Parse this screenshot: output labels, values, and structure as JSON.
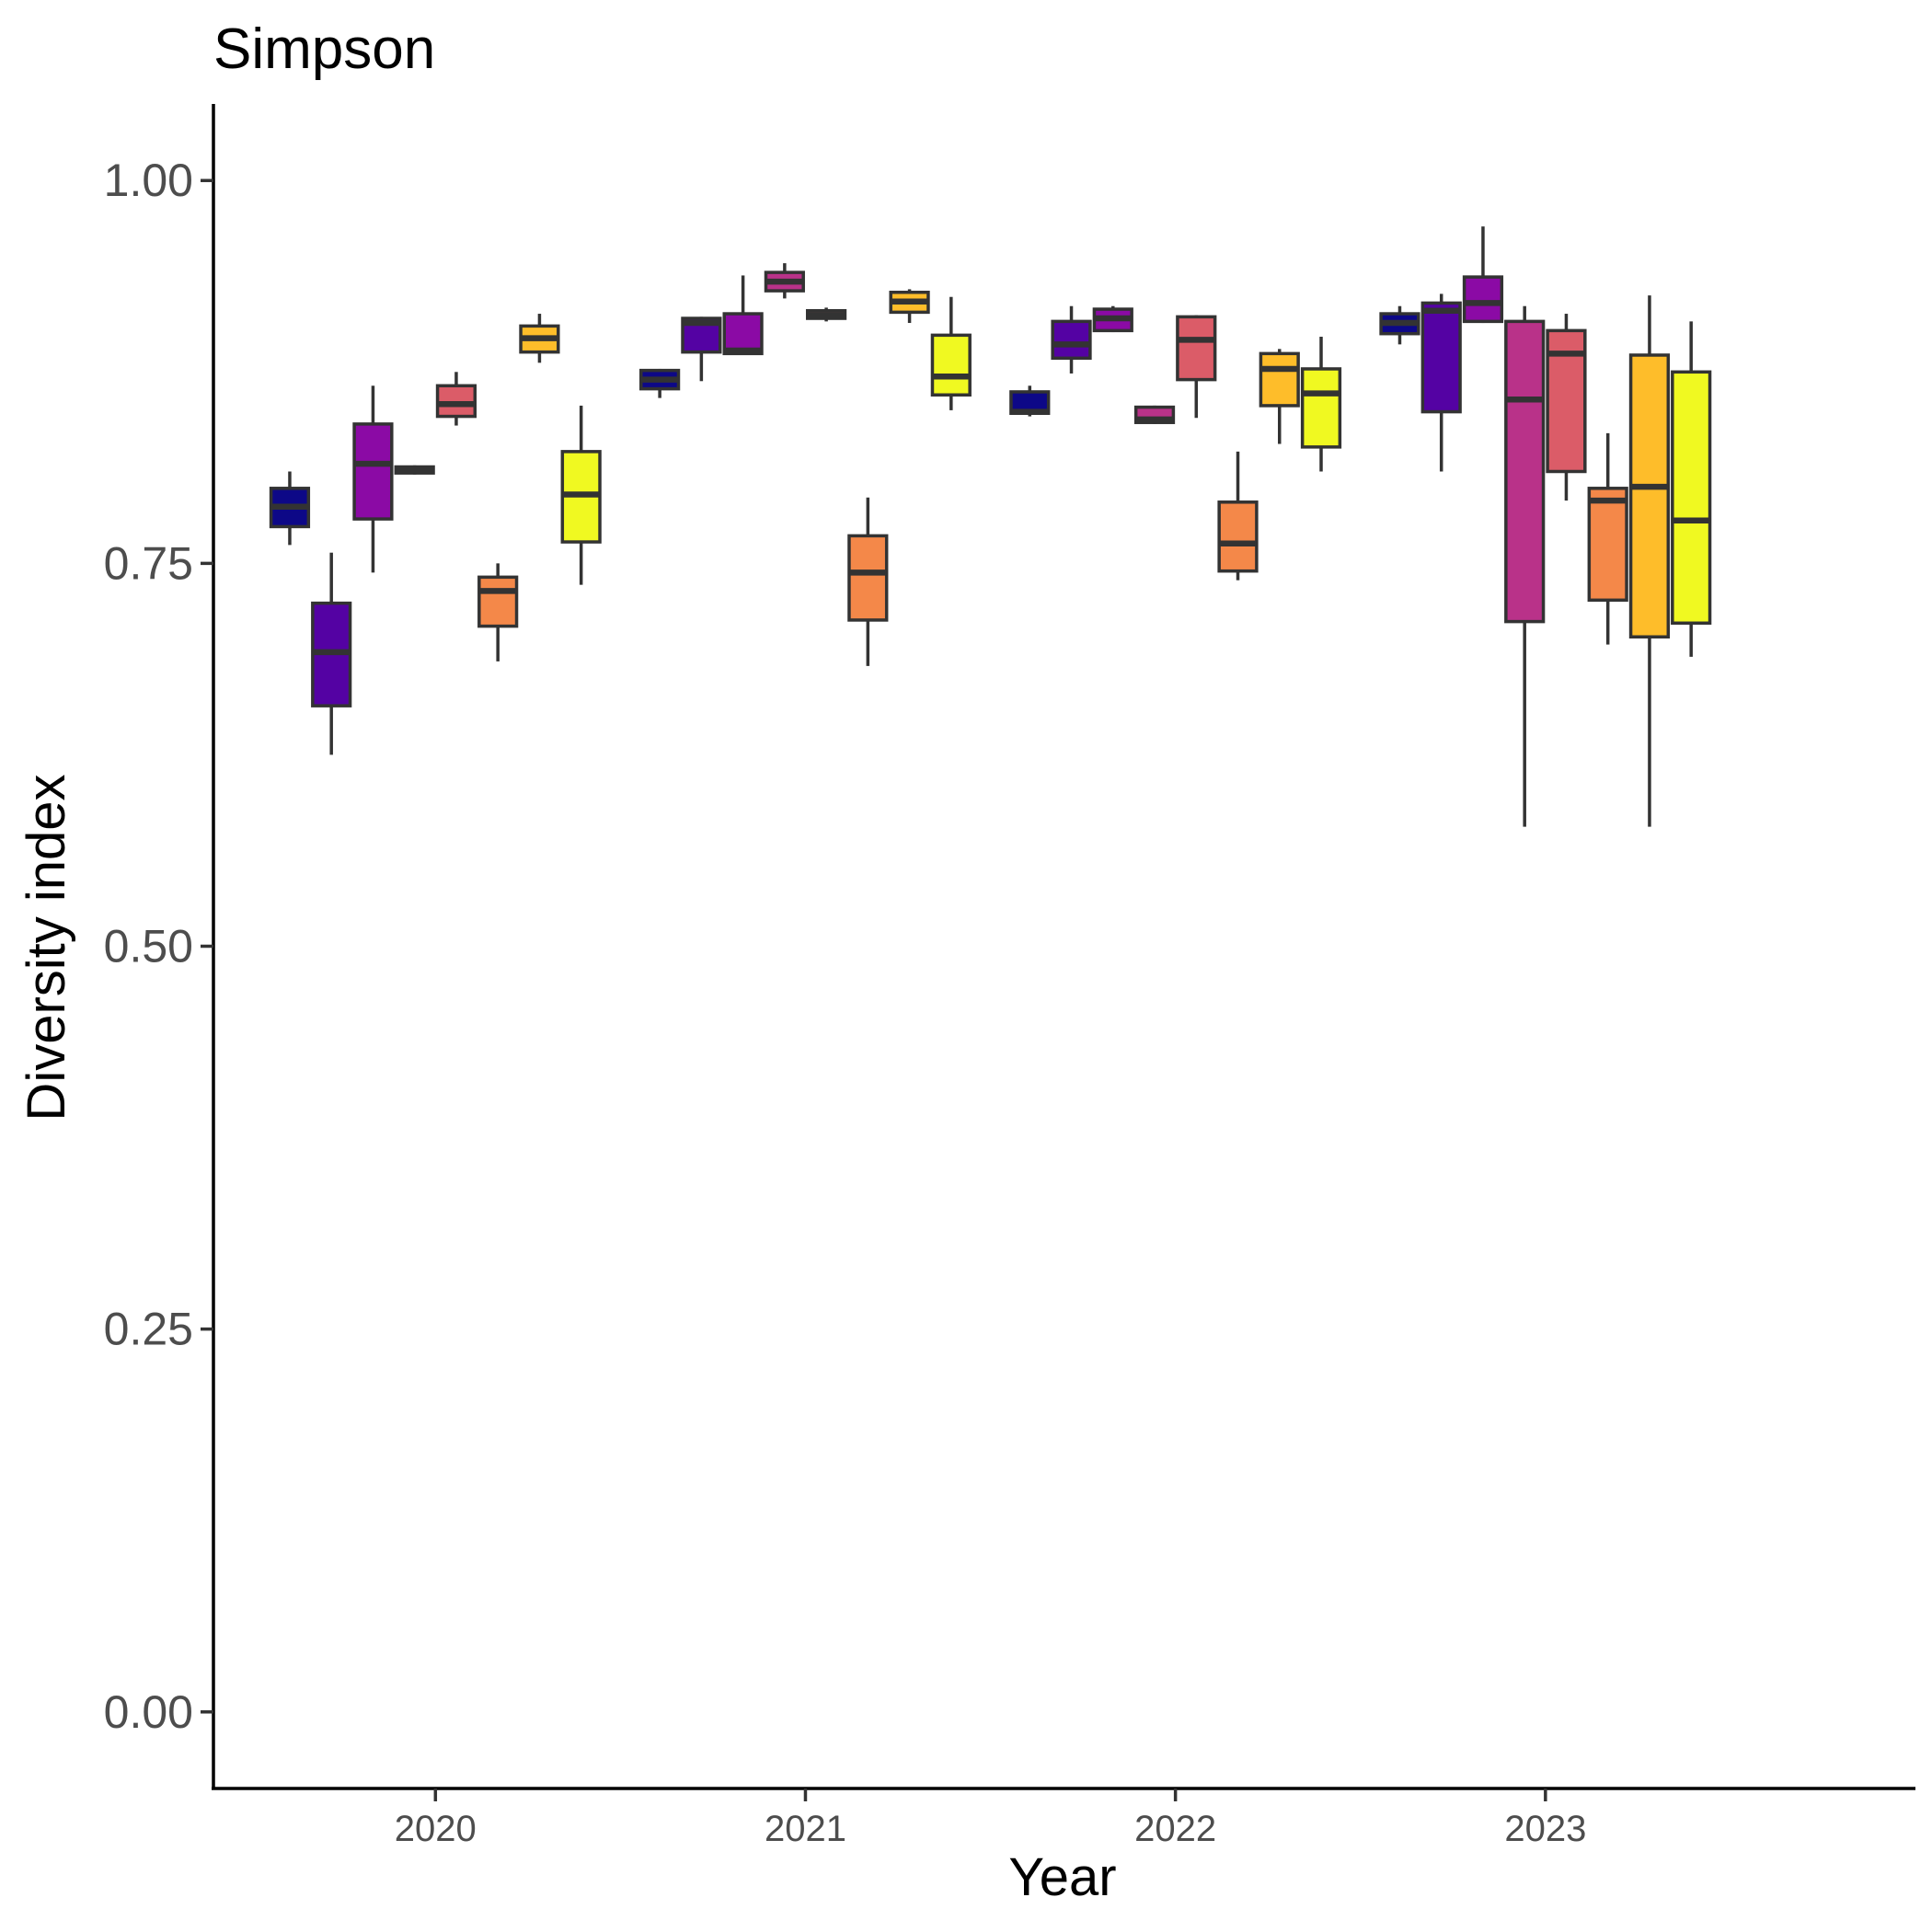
{
  "chart_data": {
    "type": "box",
    "title": "Simpson",
    "xlabel": "Year",
    "ylabel": "Diversity index",
    "categories": [
      "2020",
      "2021",
      "2022",
      "2023"
    ],
    "ylim": [
      -0.05,
      1.05
    ],
    "yticks": [
      "0.00",
      "0.25",
      "0.50",
      "0.75",
      "1.00"
    ],
    "ytick_values": [
      0,
      0.25,
      0.5,
      0.75,
      1.0
    ],
    "grid": false,
    "legend": "none",
    "series_colors": [
      "#0d0887",
      "#5402a3",
      "#8b0aa5",
      "#b93289",
      "#db5c68",
      "#f48849",
      "#febd2a",
      "#f0f921"
    ],
    "boxes": [
      {
        "year": "2020",
        "group": 0,
        "min": 0.762,
        "q1": 0.774,
        "median": 0.787,
        "q3": 0.799,
        "max": 0.81
      },
      {
        "year": "2020",
        "group": 1,
        "min": 0.625,
        "q1": 0.657,
        "median": 0.692,
        "q3": 0.724,
        "max": 0.757
      },
      {
        "year": "2020",
        "group": 2,
        "min": 0.744,
        "q1": 0.779,
        "median": 0.815,
        "q3": 0.841,
        "max": 0.866
      },
      {
        "year": "2020",
        "group": 3,
        "min": 0.808,
        "q1": 0.809,
        "median": 0.811,
        "q3": 0.813,
        "max": 0.814
      },
      {
        "year": "2020",
        "group": 4,
        "min": 0.84,
        "q1": 0.846,
        "median": 0.854,
        "q3": 0.866,
        "max": 0.875
      },
      {
        "year": "2020",
        "group": 5,
        "min": 0.686,
        "q1": 0.709,
        "median": 0.732,
        "q3": 0.741,
        "max": 0.75
      },
      {
        "year": "2020",
        "group": 6,
        "min": 0.881,
        "q1": 0.888,
        "median": 0.897,
        "q3": 0.905,
        "max": 0.913
      },
      {
        "year": "2020",
        "group": 7,
        "min": 0.736,
        "q1": 0.764,
        "median": 0.795,
        "q3": 0.823,
        "max": 0.853
      },
      {
        "year": "2021",
        "group": 0,
        "min": 0.858,
        "q1": 0.864,
        "median": 0.87,
        "q3": 0.876,
        "max": 0.877
      },
      {
        "year": "2021",
        "group": 1,
        "min": 0.869,
        "q1": 0.888,
        "median": 0.907,
        "q3": 0.91,
        "max": 0.911
      },
      {
        "year": "2021",
        "group": 2,
        "min": 0.886,
        "q1": 0.887,
        "median": 0.889,
        "q3": 0.913,
        "max": 0.938
      },
      {
        "year": "2021",
        "group": 3,
        "min": 0.923,
        "q1": 0.928,
        "median": 0.934,
        "q3": 0.94,
        "max": 0.946
      },
      {
        "year": "2021",
        "group": 4,
        "min": 0.908,
        "q1": 0.91,
        "median": 0.912,
        "q3": 0.915,
        "max": 0.917
      },
      {
        "year": "2021",
        "group": 5,
        "min": 0.683,
        "q1": 0.713,
        "median": 0.744,
        "q3": 0.768,
        "max": 0.793
      },
      {
        "year": "2021",
        "group": 6,
        "min": 0.907,
        "q1": 0.914,
        "median": 0.921,
        "q3": 0.927,
        "max": 0.929
      },
      {
        "year": "2021",
        "group": 7,
        "min": 0.85,
        "q1": 0.86,
        "median": 0.872,
        "q3": 0.899,
        "max": 0.924
      },
      {
        "year": "2022",
        "group": 0,
        "min": 0.846,
        "q1": 0.848,
        "median": 0.849,
        "q3": 0.862,
        "max": 0.866
      },
      {
        "year": "2022",
        "group": 1,
        "min": 0.874,
        "q1": 0.884,
        "median": 0.893,
        "q3": 0.908,
        "max": 0.918
      },
      {
        "year": "2022",
        "group": 2,
        "min": 0.901,
        "q1": 0.902,
        "median": 0.91,
        "q3": 0.916,
        "max": 0.918
      },
      {
        "year": "2022",
        "group": 3,
        "min": 0.841,
        "q1": 0.842,
        "median": 0.844,
        "q3": 0.852,
        "max": 0.853
      },
      {
        "year": "2022",
        "group": 4,
        "min": 0.845,
        "q1": 0.87,
        "median": 0.896,
        "q3": 0.911,
        "max": 0.912
      },
      {
        "year": "2022",
        "group": 5,
        "min": 0.739,
        "q1": 0.745,
        "median": 0.763,
        "q3": 0.79,
        "max": 0.823
      },
      {
        "year": "2022",
        "group": 6,
        "min": 0.828,
        "q1": 0.853,
        "median": 0.877,
        "q3": 0.887,
        "max": 0.89
      },
      {
        "year": "2022",
        "group": 7,
        "min": 0.81,
        "q1": 0.826,
        "median": 0.861,
        "q3": 0.877,
        "max": 0.898
      },
      {
        "year": "2023",
        "group": 0,
        "min": 0.893,
        "q1": 0.9,
        "median": 0.907,
        "q3": 0.913,
        "max": 0.918
      },
      {
        "year": "2023",
        "group": 1,
        "min": 0.81,
        "q1": 0.849,
        "median": 0.915,
        "q3": 0.92,
        "max": 0.926
      },
      {
        "year": "2023",
        "group": 2,
        "min": 0.907,
        "q1": 0.908,
        "median": 0.92,
        "q3": 0.937,
        "max": 0.97
      },
      {
        "year": "2023",
        "group": 3,
        "min": 0.578,
        "q1": 0.712,
        "median": 0.857,
        "q3": 0.908,
        "max": 0.918
      },
      {
        "year": "2023",
        "group": 4,
        "min": 0.791,
        "q1": 0.81,
        "median": 0.887,
        "q3": 0.902,
        "max": 0.913
      },
      {
        "year": "2023",
        "group": 5,
        "min": 0.697,
        "q1": 0.726,
        "median": 0.791,
        "q3": 0.799,
        "max": 0.835
      },
      {
        "year": "2023",
        "group": 6,
        "min": 0.578,
        "q1": 0.702,
        "median": 0.8,
        "q3": 0.886,
        "max": 0.925
      },
      {
        "year": "2023",
        "group": 7,
        "min": 0.689,
        "q1": 0.711,
        "median": 0.778,
        "q3": 0.875,
        "max": 0.908
      }
    ]
  }
}
